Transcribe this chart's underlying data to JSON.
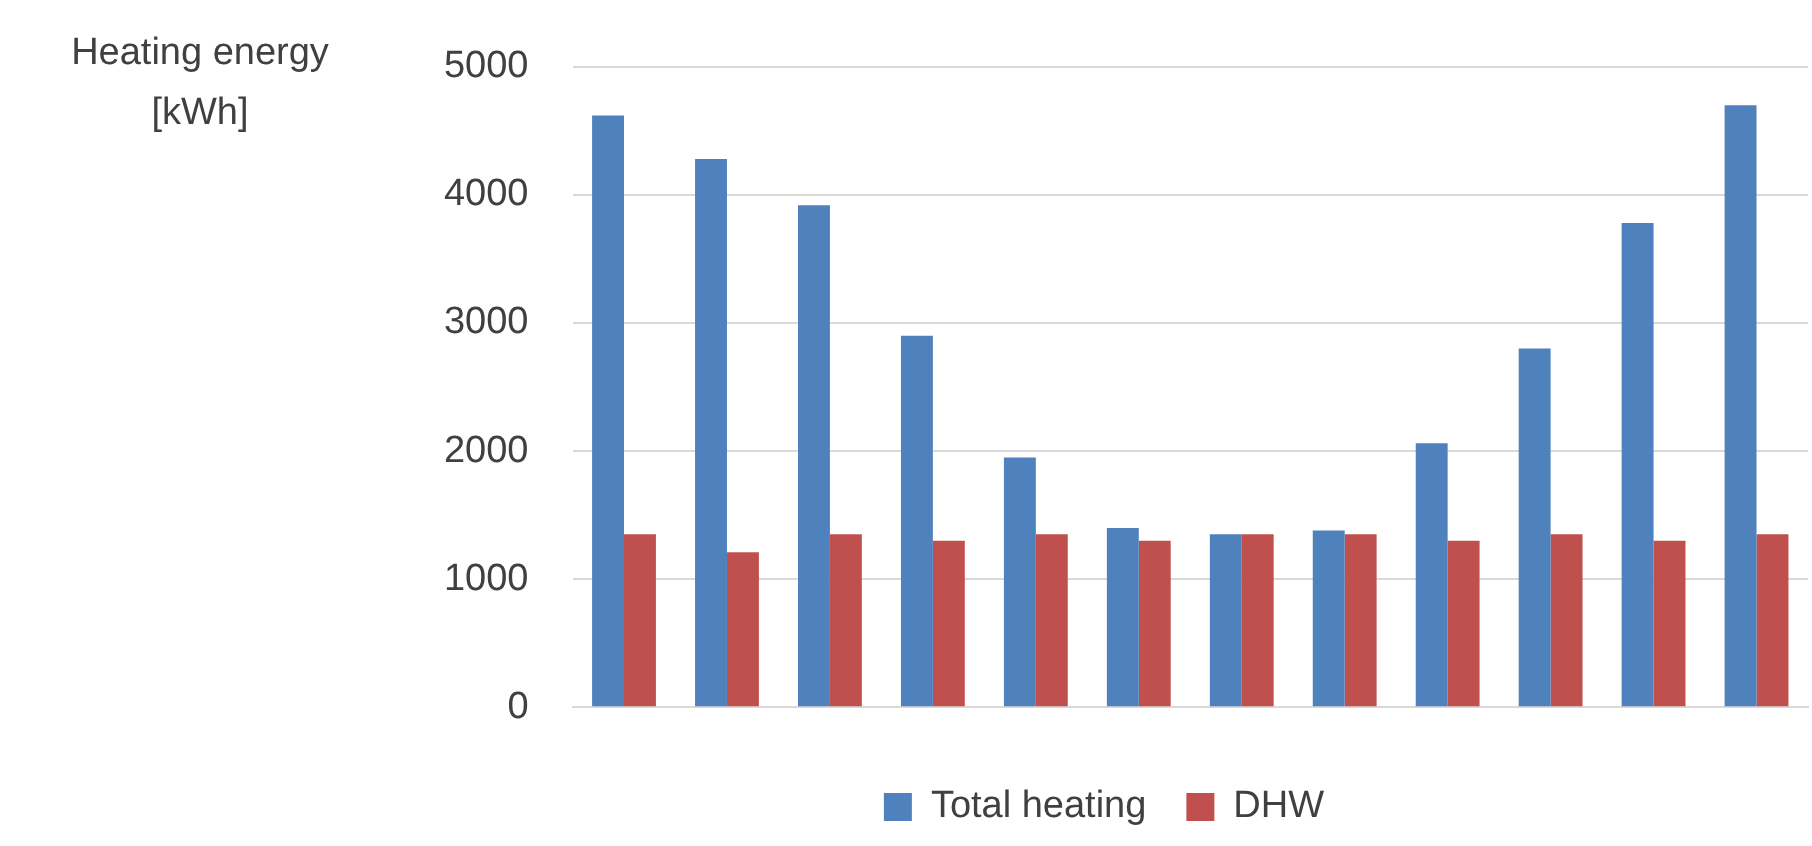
{
  "chart_data": {
    "type": "bar",
    "ylabel": "Heating energy [kWh]",
    "categories": [
      null,
      null,
      null,
      null,
      null,
      null,
      null,
      null,
      null,
      null,
      null,
      null
    ],
    "series": [
      {
        "name": "Total heating",
        "color": "#4f81bd",
        "values": [
          4620,
          4280,
          3920,
          2900,
          1950,
          1400,
          1350,
          1380,
          2060,
          2800,
          3780,
          4700
        ]
      },
      {
        "name": "DHW",
        "color": "#c0504d",
        "values": [
          1350,
          1210,
          1350,
          1300,
          1350,
          1300,
          1350,
          1350,
          1300,
          1350,
          1300,
          1350
        ]
      }
    ],
    "ylim": [
      0,
      5000
    ],
    "yticks": [
      0,
      1000,
      2000,
      3000,
      4000,
      5000
    ],
    "grid": "y",
    "legend": "bottom"
  }
}
